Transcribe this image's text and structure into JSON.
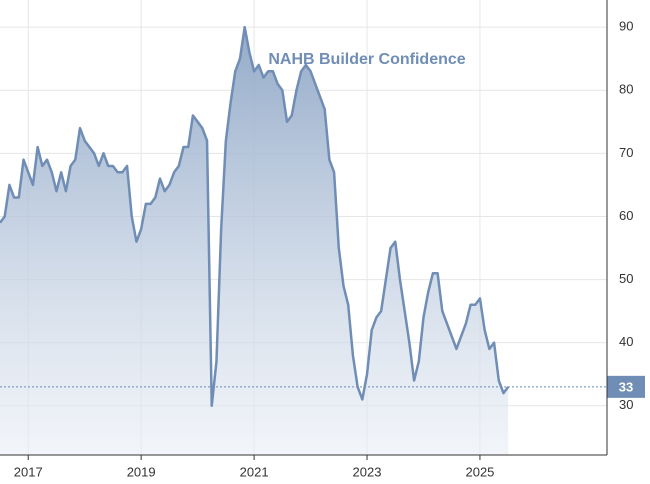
{
  "chart_data": {
    "type": "area",
    "title": "NAHB Builder Confidence",
    "x": [
      "2016-07",
      "2016-08",
      "2016-09",
      "2016-10",
      "2016-11",
      "2016-12",
      "2017-01",
      "2017-02",
      "2017-03",
      "2017-04",
      "2017-05",
      "2017-06",
      "2017-07",
      "2017-08",
      "2017-09",
      "2017-10",
      "2017-11",
      "2017-12",
      "2018-01",
      "2018-02",
      "2018-03",
      "2018-04",
      "2018-05",
      "2018-06",
      "2018-07",
      "2018-08",
      "2018-09",
      "2018-10",
      "2018-11",
      "2018-12",
      "2019-01",
      "2019-02",
      "2019-03",
      "2019-04",
      "2019-05",
      "2019-06",
      "2019-07",
      "2019-08",
      "2019-09",
      "2019-10",
      "2019-11",
      "2019-12",
      "2020-01",
      "2020-02",
      "2020-03",
      "2020-04",
      "2020-05",
      "2020-06",
      "2020-07",
      "2020-08",
      "2020-09",
      "2020-10",
      "2020-11",
      "2020-12",
      "2021-01",
      "2021-02",
      "2021-03",
      "2021-04",
      "2021-05",
      "2021-06",
      "2021-07",
      "2021-08",
      "2021-09",
      "2021-10",
      "2021-11",
      "2021-12",
      "2022-01",
      "2022-02",
      "2022-03",
      "2022-04",
      "2022-05",
      "2022-06",
      "2022-07",
      "2022-08",
      "2022-09",
      "2022-10",
      "2022-11",
      "2022-12",
      "2023-01",
      "2023-02",
      "2023-03",
      "2023-04",
      "2023-05",
      "2023-06",
      "2023-07",
      "2023-08",
      "2023-09",
      "2023-10",
      "2023-11",
      "2023-12",
      "2024-01",
      "2024-02",
      "2024-03",
      "2024-04",
      "2024-05",
      "2024-06",
      "2024-07",
      "2024-08",
      "2024-09",
      "2024-10",
      "2024-11",
      "2024-12",
      "2025-01",
      "2025-02",
      "2025-03",
      "2025-04",
      "2025-05",
      "2025-06",
      "2025-07"
    ],
    "series": [
      {
        "name": "NAHB Builder Confidence",
        "color": "#6f8db5",
        "values": [
          59,
          60,
          65,
          63,
          63,
          69,
          67,
          65,
          71,
          68,
          69,
          67,
          64,
          67,
          64,
          68,
          69,
          74,
          72,
          71,
          70,
          68,
          70,
          68,
          68,
          67,
          67,
          68,
          60,
          56,
          58,
          62,
          62,
          63,
          66,
          64,
          65,
          67,
          68,
          71,
          71,
          76,
          75,
          74,
          72,
          30,
          37,
          58,
          72,
          78,
          83,
          85,
          90,
          86,
          83,
          84,
          82,
          83,
          83,
          81,
          80,
          75,
          76,
          80,
          83,
          84,
          83,
          81,
          79,
          77,
          69,
          67,
          55,
          49,
          46,
          38,
          33,
          31,
          35,
          42,
          44,
          45,
          50,
          55,
          56,
          50,
          45,
          40,
          34,
          37,
          44,
          48,
          51,
          51,
          45,
          43,
          41,
          39,
          41,
          43,
          46,
          46,
          47,
          42,
          39,
          40,
          34,
          32,
          33
        ]
      }
    ],
    "xlim": [
      "2016-07",
      "2027-04"
    ],
    "xticks": [
      "2017",
      "2019",
      "2021",
      "2023",
      "2025"
    ],
    "ylim": [
      22.2,
      94.3
    ],
    "yticks": [
      30,
      40,
      50,
      60,
      70,
      80,
      90
    ],
    "grid": true
  }
}
